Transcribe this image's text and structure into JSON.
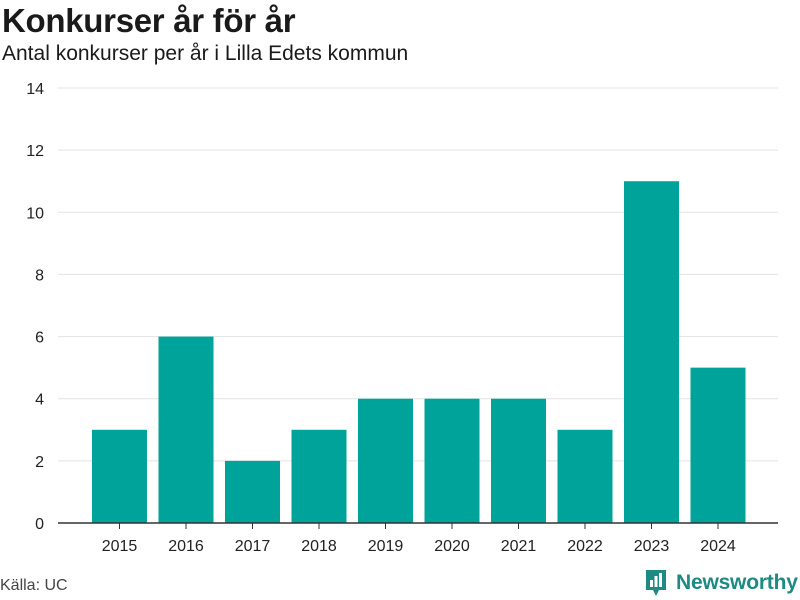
{
  "header": {
    "title": "Konkurser år för år",
    "subtitle": "Antal konkurser per år i Lilla Edets kommun"
  },
  "footer": {
    "source": "Källa: UC",
    "brand": "Newsworthy",
    "brand_icon": "bar-chart-pin-icon"
  },
  "colors": {
    "bar": "#00a39a",
    "grid": "#e3e3e3",
    "axis": "#333333",
    "brand": "#1d8a83"
  },
  "chart_data": {
    "type": "bar",
    "title": "Konkurser år för år",
    "subtitle": "Antal konkurser per år i Lilla Edets kommun",
    "categories": [
      "2015",
      "2016",
      "2017",
      "2018",
      "2019",
      "2020",
      "2021",
      "2022",
      "2023",
      "2024"
    ],
    "values": [
      3,
      6,
      2,
      3,
      4,
      4,
      4,
      3,
      11,
      5
    ],
    "ylim": [
      0,
      14
    ],
    "yticks": [
      0,
      2,
      4,
      6,
      8,
      10,
      12,
      14
    ],
    "grid": true,
    "legend": "none"
  }
}
